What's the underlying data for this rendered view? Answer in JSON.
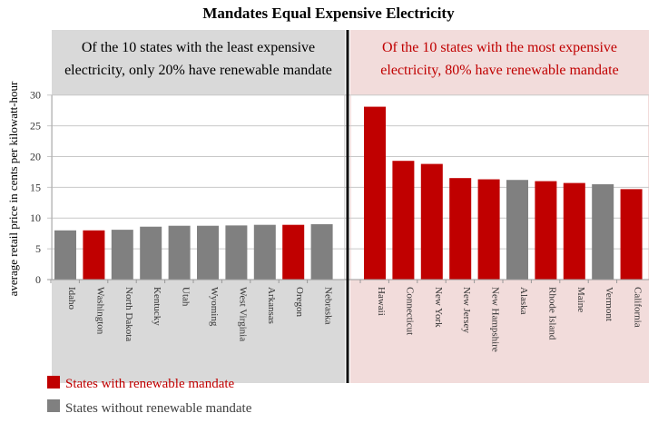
{
  "chart_data": {
    "type": "bar",
    "title": "Mandates Equal Expensive Electricity",
    "ylabel": "average retail price in cents per kilowatt-hour",
    "xlabel": "",
    "ylim": [
      0,
      30
    ],
    "yticks": [
      0,
      5,
      10,
      15,
      20,
      25,
      30
    ],
    "grid": true,
    "colors": {
      "mandate": "#c00000",
      "no_mandate": "#808080",
      "left_panel": "#d9d9d9",
      "right_panel": "#f2dcdb",
      "annotation_left": "#000000",
      "annotation_right": "#c00000"
    },
    "groups": [
      {
        "annotation": [
          "Of the 10 states with the least expensive",
          "electricity, only 20% have renewable mandate"
        ],
        "categories": [
          "Idaho",
          "Washington",
          "North Dakota",
          "Kentucky",
          "Utah",
          "Wyoming",
          "West Virginia",
          "Arkansas",
          "Oregon",
          "Nebraska"
        ],
        "values": [
          8.0,
          8.0,
          8.1,
          8.6,
          8.75,
          8.75,
          8.8,
          8.9,
          8.9,
          9.0
        ],
        "mandate": [
          false,
          true,
          false,
          false,
          false,
          false,
          false,
          false,
          true,
          false
        ]
      },
      {
        "annotation": [
          "Of the 10 states with the most expensive",
          "electricity, 80% have renewable mandate"
        ],
        "categories": [
          "Hawaii",
          "Connecticut",
          "New York",
          "New Jersey",
          "New Hampshire",
          "Alaska",
          "Rhode Island",
          "Maine",
          "Vermont",
          "California"
        ],
        "values": [
          28.1,
          19.3,
          18.8,
          16.5,
          16.3,
          16.2,
          16.0,
          15.7,
          15.5,
          14.7
        ],
        "mandate": [
          true,
          true,
          true,
          true,
          true,
          false,
          true,
          true,
          false,
          true
        ]
      }
    ],
    "legend": {
      "placement": "bottom-left",
      "entries": [
        {
          "label": "States with renewable mandate",
          "key": "mandate"
        },
        {
          "label": "States without renewable mandate",
          "key": "no_mandate"
        }
      ]
    }
  }
}
